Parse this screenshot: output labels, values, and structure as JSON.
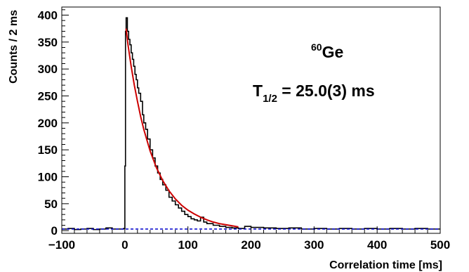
{
  "chart_data": {
    "type": "line",
    "xlabel": "Correlation time [ms]",
    "ylabel": "Counts / 2 ms",
    "xlim": [
      -100,
      500
    ],
    "ylim": [
      -5,
      415
    ],
    "x_ticks": [
      -100,
      0,
      100,
      200,
      300,
      400,
      500
    ],
    "x_tick_labels": [
      "−100",
      "0",
      "100",
      "200",
      "300",
      "400",
      "500"
    ],
    "y_ticks": [
      0,
      50,
      100,
      150,
      200,
      250,
      300,
      350,
      400
    ],
    "y_tick_labels": [
      "0",
      "50",
      "100",
      "150",
      "200",
      "250",
      "300",
      "350",
      "400"
    ],
    "annotations": {
      "isotope_mass": "60",
      "isotope_symbol": "Ge",
      "halflife_symbol": "T",
      "halflife_subscript": "1/2",
      "halflife_value": " = 25.0(3) ms"
    },
    "series": [
      {
        "style": "histogram",
        "color": "#000000",
        "points": [
          [
            -100,
            3
          ],
          [
            -90,
            4
          ],
          [
            -80,
            2
          ],
          [
            -70,
            3
          ],
          [
            -60,
            4
          ],
          [
            -50,
            2
          ],
          [
            -40,
            3
          ],
          [
            -30,
            5
          ],
          [
            -20,
            3
          ],
          [
            -10,
            3
          ],
          [
            -2,
            4
          ],
          [
            0,
            120
          ],
          [
            1,
            370
          ],
          [
            2,
            395
          ],
          [
            4,
            370
          ],
          [
            6,
            355
          ],
          [
            8,
            345
          ],
          [
            10,
            330
          ],
          [
            12,
            318
          ],
          [
            14,
            305
          ],
          [
            16,
            290
          ],
          [
            18,
            280
          ],
          [
            20,
            265
          ],
          [
            22,
            255
          ],
          [
            25,
            240
          ],
          [
            28,
            215
          ],
          [
            30,
            200
          ],
          [
            33,
            188
          ],
          [
            36,
            170
          ],
          [
            40,
            150
          ],
          [
            44,
            135
          ],
          [
            48,
            120
          ],
          [
            52,
            107
          ],
          [
            56,
            95
          ],
          [
            60,
            85
          ],
          [
            65,
            75
          ],
          [
            70,
            62
          ],
          [
            75,
            55
          ],
          [
            80,
            48
          ],
          [
            85,
            42
          ],
          [
            90,
            36
          ],
          [
            95,
            30
          ],
          [
            100,
            26
          ],
          [
            105,
            22
          ],
          [
            110,
            20
          ],
          [
            115,
            18
          ],
          [
            120,
            25
          ],
          [
            125,
            16
          ],
          [
            130,
            13
          ],
          [
            140,
            10
          ],
          [
            150,
            8
          ],
          [
            160,
            6
          ],
          [
            170,
            5
          ],
          [
            180,
            4
          ],
          [
            190,
            8
          ],
          [
            200,
            6
          ],
          [
            220,
            5
          ],
          [
            240,
            4
          ],
          [
            260,
            5
          ],
          [
            280,
            3
          ],
          [
            300,
            4
          ],
          [
            320,
            3
          ],
          [
            340,
            4
          ],
          [
            360,
            3
          ],
          [
            380,
            4
          ],
          [
            400,
            3
          ],
          [
            420,
            4
          ],
          [
            440,
            3
          ],
          [
            460,
            4
          ],
          [
            480,
            3
          ],
          [
            500,
            3
          ]
        ]
      },
      {
        "style": "fit",
        "color": "#cc0000",
        "points": [
          [
            2,
            375
          ],
          [
            5,
            345
          ],
          [
            10,
            305
          ],
          [
            15,
            270
          ],
          [
            20,
            240
          ],
          [
            25,
            212
          ],
          [
            30,
            188
          ],
          [
            40,
            148
          ],
          [
            50,
            117
          ],
          [
            60,
            93
          ],
          [
            70,
            74
          ],
          [
            80,
            59
          ],
          [
            90,
            47
          ],
          [
            100,
            38
          ],
          [
            110,
            31
          ],
          [
            120,
            25
          ],
          [
            130,
            20
          ],
          [
            140,
            16
          ],
          [
            150,
            13
          ],
          [
            160,
            11
          ],
          [
            170,
            9
          ],
          [
            180,
            7
          ]
        ]
      },
      {
        "style": "background",
        "color": "#0000cc",
        "points": [
          [
            -100,
            3
          ],
          [
            500,
            3
          ]
        ]
      }
    ]
  }
}
